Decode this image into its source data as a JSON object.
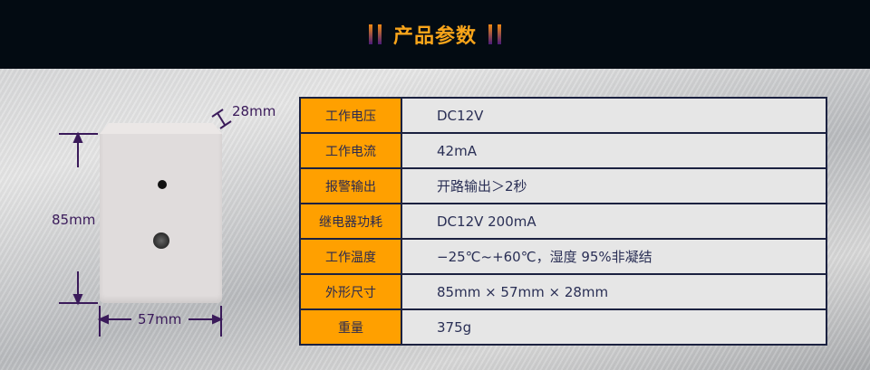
{
  "header": {
    "title": "产品参数"
  },
  "specs": [
    {
      "label": "工作电压",
      "value": "DC12V"
    },
    {
      "label": "工作电流",
      "value": "42mA"
    },
    {
      "label": "报警输出",
      "value": "开路输出＞2秒"
    },
    {
      "label": "继电器功耗",
      "value": "DC12V 200mA"
    },
    {
      "label": "工作温度",
      "value": "−25℃~+60℃，湿度 95%非凝结"
    },
    {
      "label": "外形尺寸",
      "value": "85mm × 57mm ×  28mm"
    },
    {
      "label": "重量",
      "value": "375g"
    }
  ],
  "dimensions": {
    "depth": "28mm",
    "height": "85mm",
    "width": "57mm"
  },
  "colors": {
    "accent": "#ffa000",
    "title": "#f9a51a",
    "header_bg": "#030b12",
    "border": "#1b2140"
  }
}
